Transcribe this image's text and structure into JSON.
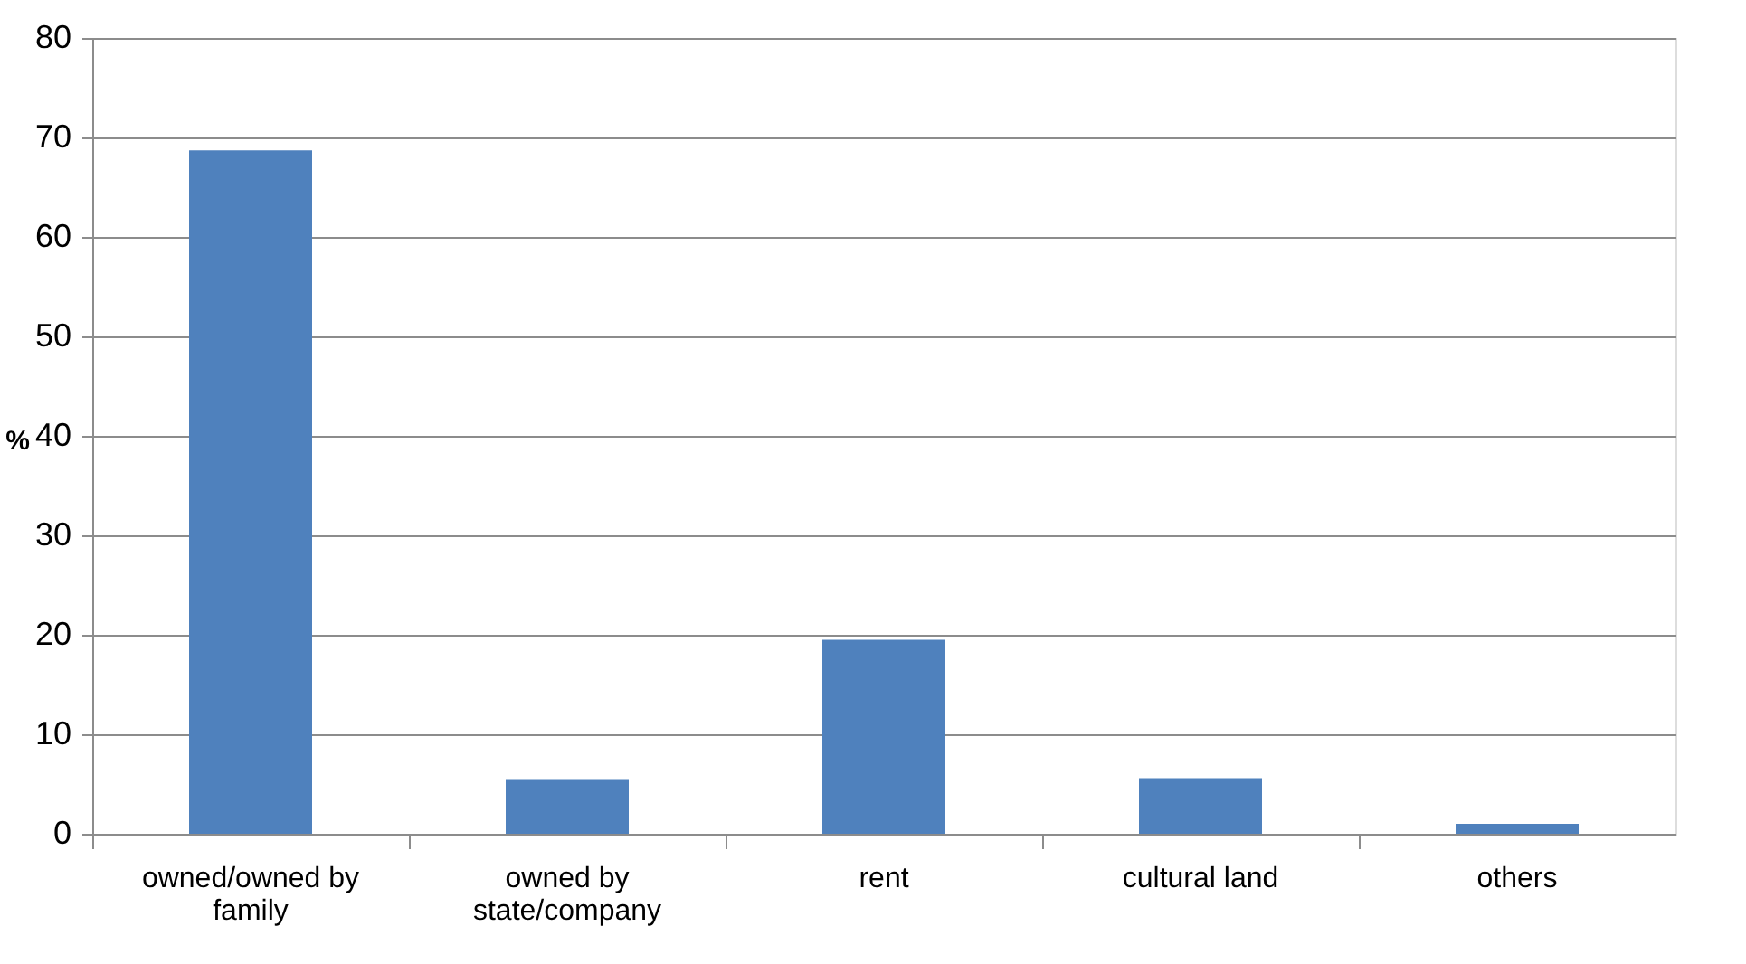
{
  "chart_data": {
    "type": "bar",
    "ylabel": "%",
    "categories": [
      "owned/owned by family",
      "owned by state/company",
      "rent",
      "cultural land",
      "others"
    ],
    "values": [
      68.7,
      5.5,
      19.5,
      5.6,
      1.0
    ],
    "color": "#4f81bd",
    "ylim": [
      0,
      80
    ],
    "yticks": [
      0,
      10,
      20,
      30,
      40,
      50,
      60,
      70,
      80
    ],
    "grid": "y"
  }
}
